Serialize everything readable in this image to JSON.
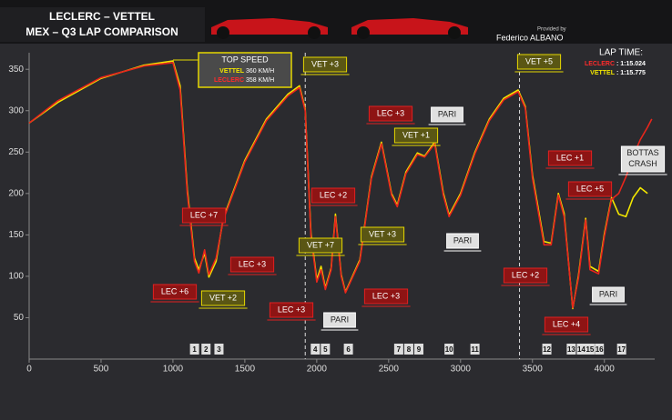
{
  "chart_data": {
    "type": "line",
    "title": "LECLERC – VETTEL",
    "subtitle": "MEX – Q3 LAP COMPARISON",
    "credit_prefix": "Provided by",
    "credit": "Federico ALBANO",
    "lap_time_title": "LAP TIME:",
    "lap_times": [
      {
        "name": "LECLERC",
        "time": ": 1:15.024",
        "color": "#ff2b2b"
      },
      {
        "name": "VETTEL",
        "time": ": 1:15.775",
        "color": "#f2e600"
      }
    ],
    "top_speed": {
      "title": "TOP SPEED",
      "rows": [
        {
          "name": "VETTEL",
          "speed": "360 KM/H",
          "color": "#f2e600"
        },
        {
          "name": "LECLERC",
          "speed": "358 KM/H",
          "color": "#ff2b2b"
        }
      ]
    },
    "x": [
      0,
      200,
      500,
      800,
      1000,
      1050,
      1100,
      1150,
      1180,
      1220,
      1250,
      1300,
      1350,
      1500,
      1650,
      1800,
      1880,
      1920,
      1960,
      2000,
      2030,
      2060,
      2100,
      2130,
      2170,
      2200,
      2300,
      2380,
      2450,
      2520,
      2560,
      2620,
      2700,
      2750,
      2820,
      2880,
      2920,
      3000,
      3100,
      3200,
      3300,
      3400,
      3450,
      3500,
      3580,
      3630,
      3680,
      3720,
      3780,
      3820,
      3870,
      3900,
      3960,
      4000,
      4050,
      4100,
      4150,
      4200,
      4250,
      4300,
      4330
    ],
    "series": [
      {
        "name": "LECLERC",
        "color": "#e8261c",
        "values": [
          285,
          312,
          340,
          354,
          358,
          325,
          200,
          118,
          104,
          132,
          102,
          122,
          168,
          238,
          288,
          318,
          328,
          300,
          148,
          93,
          108,
          84,
          108,
          172,
          100,
          80,
          118,
          218,
          260,
          198,
          184,
          224,
          247,
          244,
          260,
          198,
          172,
          198,
          248,
          288,
          313,
          323,
          303,
          218,
          138,
          138,
          198,
          172,
          62,
          98,
          168,
          108,
          103,
          148,
          193,
          200,
          220,
          245,
          265,
          280,
          290
        ]
      },
      {
        "name": "VETTEL",
        "color": "#f2e600",
        "values": [
          285,
          310,
          339,
          355,
          360,
          330,
          205,
          122,
          108,
          128,
          99,
          118,
          170,
          240,
          290,
          320,
          330,
          302,
          152,
          96,
          112,
          86,
          110,
          175,
          102,
          81,
          120,
          220,
          262,
          200,
          186,
          226,
          249,
          245,
          262,
          201,
          174,
          200,
          250,
          290,
          315,
          325,
          305,
          222,
          142,
          140,
          200,
          176,
          61,
          101,
          170,
          112,
          106,
          151,
          195,
          175,
          172,
          195,
          207,
          200,
          null
        ]
      }
    ],
    "xlim": [
      0,
      4350
    ],
    "ylim": [
      0,
      370
    ],
    "xticks": [
      0,
      500,
      1000,
      1500,
      2000,
      2500,
      3000,
      3500,
      4000
    ],
    "yticks": [
      50,
      100,
      150,
      200,
      250,
      300,
      350
    ],
    "dashed_x": [
      1920,
      3410
    ],
    "turns": {
      "labels": [
        "1",
        "2",
        "3",
        "4",
        "5",
        "6",
        "7",
        "8",
        "9",
        "10",
        "11",
        "12",
        "13",
        "14",
        "15",
        "16",
        "17"
      ],
      "x": [
        1150,
        1230,
        1320,
        1990,
        2060,
        2220,
        2570,
        2640,
        2710,
        2920,
        3100,
        3600,
        3770,
        3840,
        3900,
        3965,
        4120
      ]
    },
    "annotations": [
      {
        "text": "LEC +6",
        "kind": "lec"
      },
      {
        "text": "LEC +7",
        "kind": "lec"
      },
      {
        "text": "VET +2",
        "kind": "vet"
      },
      {
        "text": "LEC +3",
        "kind": "lec"
      },
      {
        "text": "VET +3",
        "kind": "vet"
      },
      {
        "text": "VET +7",
        "kind": "vet"
      },
      {
        "text": "LEC +2",
        "kind": "lec"
      },
      {
        "text": "LEC +3",
        "kind": "lec"
      },
      {
        "text": "PARI",
        "kind": "pari"
      },
      {
        "text": "LEC +3",
        "kind": "lec"
      },
      {
        "text": "LEC +3",
        "kind": "lec"
      },
      {
        "text": "PARI",
        "kind": "pari"
      },
      {
        "text": "VET +1",
        "kind": "vet"
      },
      {
        "text": "VET +3",
        "kind": "vet"
      },
      {
        "text": "PARI",
        "kind": "pari"
      },
      {
        "text": "VET +5",
        "kind": "vet"
      },
      {
        "text": "LEC +1",
        "kind": "lec"
      },
      {
        "text": "LEC +2",
        "kind": "lec"
      },
      {
        "text": "LEC +5",
        "kind": "lec"
      },
      {
        "text": "LEC +4",
        "kind": "lec"
      },
      {
        "text": "PARI",
        "kind": "pari"
      },
      {
        "text": "BOTTAS\nCRASH",
        "kind": "pari"
      }
    ]
  }
}
